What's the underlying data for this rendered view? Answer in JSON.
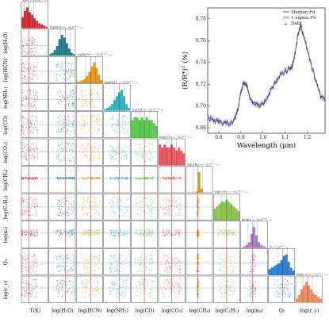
{
  "chart_data": {
    "type": "corner",
    "parameters": [
      {
        "label": "T(K)",
        "color": "#d62b3a"
      },
      {
        "label": "log(H₂O)",
        "color": "#1f7b8c"
      },
      {
        "label": "log(HCN)",
        "color": "#e39b1c"
      },
      {
        "label": "log(NH₃)",
        "color": "#2bb7c7"
      },
      {
        "label": "log(CO)",
        "color": "#58c94c"
      },
      {
        "label": "log(CO₂)",
        "color": "#e8555a"
      },
      {
        "label": "log(CH₄)",
        "color": "#e09a10"
      },
      {
        "label": "log(C₂H₂)",
        "color": "#8bc34a"
      },
      {
        "label": "log(κ₀)",
        "color": "#b07cc9"
      },
      {
        "label": "Q₀",
        "color": "#2c7fd6"
      },
      {
        "label": "log(r_c)",
        "color": "#f08a5d"
      }
    ],
    "diagonal_titles": [
      "T(K) = 1074⁺³⁰⁵₋₂₂₇",
      "log(H₂O) = −4.0⁺⁰·⁸₋₁.₂",
      "log(HCN) = −5.8⁺¹·²₋₃.₅",
      "log(NH₃) = −5.9⁺¹·¹₋₃.₃",
      "log(CO) = −6.3⁺³·⁴₋₃.₆",
      "log(CO₂) = −5.9⁺³·³₋₃.₃",
      "log(CH₄) = −3.9⁺⁰·²₋₀.₂",
      "log(C₂H₂) = −6.1⁺³·⁵₋₃.₇",
      "log(κ₀) = −6.6⁺⁰·⁸₋₀.₈",
      "Q₀ = 32⁺¹³₋₁₈",
      "log(r_c) = −2.2⁺¹·⁰₋₀.₇"
    ],
    "histograms": [
      [
        9,
        14,
        17,
        13,
        11,
        8,
        6,
        4,
        3,
        2,
        1
      ],
      [
        1,
        2,
        4,
        7,
        12,
        15,
        13,
        9,
        5,
        2,
        1
      ],
      [
        1,
        1,
        2,
        3,
        5,
        8,
        12,
        15,
        11,
        6,
        2
      ],
      [
        1,
        2,
        3,
        5,
        8,
        11,
        14,
        16,
        11,
        5,
        2
      ],
      [
        6,
        7,
        7,
        6,
        7,
        6,
        7,
        6,
        6,
        5,
        4
      ],
      [
        7,
        6,
        7,
        6,
        6,
        7,
        6,
        5,
        6,
        5,
        4
      ],
      [
        0,
        0,
        0,
        0,
        1,
        15,
        3,
        0,
        0,
        0,
        0
      ],
      [
        5,
        6,
        7,
        8,
        8,
        9,
        8,
        7,
        6,
        5,
        4
      ],
      [
        0,
        1,
        2,
        4,
        10,
        15,
        9,
        4,
        2,
        1,
        0
      ],
      [
        4,
        5,
        6,
        7,
        8,
        10,
        13,
        14,
        9,
        5,
        3
      ],
      [
        2,
        4,
        7,
        9,
        11,
        9,
        7,
        5,
        4,
        3,
        2
      ]
    ],
    "medians_fraction": [
      0.28,
      0.62,
      0.55,
      0.58,
      0.5,
      0.5,
      0.45,
      0.5,
      0.45,
      0.55,
      0.45
    ],
    "inset": {
      "type": "line",
      "xlabel": "Wavelength (μm)",
      "ylabel": "(R/R*)² (%)",
      "xlim": [
        0.75,
        1.28
      ],
      "ylim": [
        0.675,
        0.79
      ],
      "xticks": [
        0.8,
        0.9,
        1.0,
        1.1,
        1.2
      ],
      "yticks": [
        0.68,
        0.7,
        0.72,
        0.74,
        0.76,
        0.78
      ],
      "legend": [
        "Median Fit",
        "1-sigma Fit",
        "Data"
      ],
      "legend_position": "top-right",
      "median_fit": {
        "x": [
          0.75,
          0.77,
          0.79,
          0.81,
          0.83,
          0.85,
          0.87,
          0.88,
          0.89,
          0.9,
          0.91,
          0.92,
          0.93,
          0.94,
          0.96,
          0.98,
          1.0,
          1.02,
          1.04,
          1.06,
          1.08,
          1.1,
          1.12,
          1.13,
          1.14,
          1.15,
          1.16,
          1.17,
          1.18,
          1.2,
          1.22,
          1.24,
          1.26,
          1.28
        ],
        "y": [
          0.689,
          0.687,
          0.686,
          0.685,
          0.684,
          0.684,
          0.687,
          0.692,
          0.7,
          0.713,
          0.72,
          0.722,
          0.716,
          0.708,
          0.702,
          0.7,
          0.702,
          0.709,
          0.716,
          0.724,
          0.729,
          0.732,
          0.734,
          0.737,
          0.744,
          0.755,
          0.767,
          0.775,
          0.766,
          0.752,
          0.736,
          0.722,
          0.71,
          0.704
        ]
      }
    }
  }
}
